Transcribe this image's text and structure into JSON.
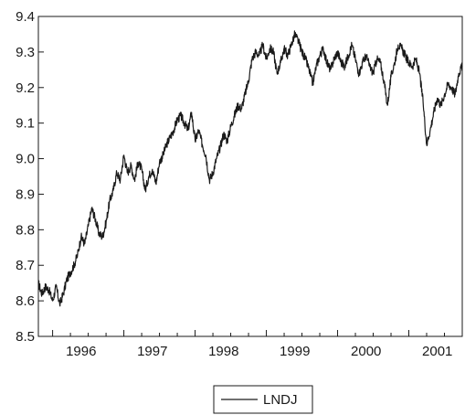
{
  "chart_data": {
    "type": "line",
    "title": "",
    "xlabel": "",
    "ylabel": "",
    "ylim": [
      8.5,
      9.4
    ],
    "xlim": [
      1995.8,
      2001.75
    ],
    "y_ticks": [
      "8.5",
      "8.6",
      "8.7",
      "8.8",
      "8.9",
      "9.0",
      "9.1",
      "9.2",
      "9.3",
      "9.4"
    ],
    "x_tick_labels": [
      "1996",
      "1997",
      "1998",
      "1999",
      "2000",
      "2001"
    ],
    "grid": false,
    "legend_position": "bottom-center",
    "line_color": "#1a1a1a",
    "series": [
      {
        "name": "LNDJ",
        "x": [
          1995.8,
          1995.85,
          1995.9,
          1995.95,
          1996.0,
          1996.05,
          1996.1,
          1996.15,
          1996.2,
          1996.25,
          1996.3,
          1996.35,
          1996.4,
          1996.45,
          1996.5,
          1996.55,
          1996.6,
          1996.65,
          1996.7,
          1996.75,
          1996.8,
          1996.85,
          1996.9,
          1996.95,
          1997.0,
          1997.05,
          1997.1,
          1997.15,
          1997.2,
          1997.25,
          1997.3,
          1997.35,
          1997.4,
          1997.45,
          1997.5,
          1997.55,
          1997.6,
          1997.65,
          1997.7,
          1997.75,
          1997.8,
          1997.85,
          1997.9,
          1997.95,
          1998.0,
          1998.05,
          1998.1,
          1998.15,
          1998.2,
          1998.25,
          1998.3,
          1998.35,
          1998.4,
          1998.45,
          1998.5,
          1998.55,
          1998.6,
          1998.65,
          1998.7,
          1998.75,
          1998.8,
          1998.85,
          1998.9,
          1998.95,
          1999.0,
          1999.05,
          1999.1,
          1999.15,
          1999.2,
          1999.25,
          1999.3,
          1999.35,
          1999.4,
          1999.45,
          1999.5,
          1999.55,
          1999.6,
          1999.65,
          1999.7,
          1999.75,
          1999.8,
          1999.85,
          1999.9,
          1999.95,
          2000.0,
          2000.05,
          2000.1,
          2000.15,
          2000.2,
          2000.25,
          2000.3,
          2000.35,
          2000.4,
          2000.45,
          2000.5,
          2000.55,
          2000.6,
          2000.65,
          2000.7,
          2000.75,
          2000.8,
          2000.85,
          2000.9,
          2000.95,
          2001.0,
          2001.05,
          2001.1,
          2001.15,
          2001.2,
          2001.25,
          2001.3,
          2001.35,
          2001.4,
          2001.45,
          2001.5,
          2001.55,
          2001.6,
          2001.65,
          2001.7,
          2001.75
        ],
        "values": [
          8.65,
          8.62,
          8.64,
          8.63,
          8.6,
          8.64,
          8.59,
          8.62,
          8.66,
          8.68,
          8.7,
          8.73,
          8.78,
          8.76,
          8.81,
          8.86,
          8.83,
          8.79,
          8.78,
          8.82,
          8.88,
          8.91,
          8.96,
          8.94,
          9.01,
          8.96,
          8.98,
          8.94,
          8.99,
          8.97,
          8.91,
          8.95,
          8.97,
          8.93,
          8.99,
          9.01,
          9.04,
          9.06,
          9.08,
          9.11,
          9.12,
          9.1,
          9.08,
          9.13,
          9.05,
          9.08,
          9.04,
          9.01,
          8.94,
          8.96,
          9.0,
          9.03,
          9.07,
          9.05,
          9.09,
          9.12,
          9.15,
          9.14,
          9.18,
          9.22,
          9.28,
          9.3,
          9.29,
          9.32,
          9.28,
          9.31,
          9.3,
          9.24,
          9.27,
          9.31,
          9.29,
          9.32,
          9.35,
          9.33,
          9.3,
          9.28,
          9.25,
          9.21,
          9.26,
          9.29,
          9.31,
          9.27,
          9.25,
          9.28,
          9.3,
          9.27,
          9.26,
          9.29,
          9.32,
          9.28,
          9.24,
          9.27,
          9.29,
          9.26,
          9.24,
          9.28,
          9.27,
          9.22,
          9.15,
          9.23,
          9.27,
          9.32,
          9.31,
          9.29,
          9.27,
          9.26,
          9.28,
          9.24,
          9.16,
          9.04,
          9.08,
          9.13,
          9.17,
          9.15,
          9.18,
          9.21,
          9.2,
          9.18,
          9.24,
          9.26
        ]
      }
    ]
  }
}
